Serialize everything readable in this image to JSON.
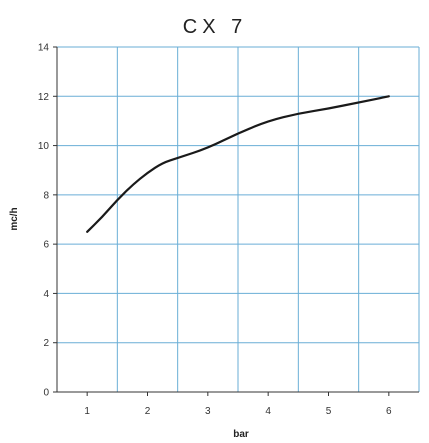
{
  "chart_data": {
    "type": "line",
    "title": "CX  7",
    "xlabel": "bar",
    "ylabel": "mc/h",
    "xlim": [
      0.5,
      6.5
    ],
    "ylim": [
      0,
      14
    ],
    "x_ticks": [
      1,
      2,
      3,
      4,
      5,
      6
    ],
    "y_ticks": [
      0,
      2,
      4,
      6,
      8,
      10,
      12,
      14
    ],
    "grid": true,
    "colors": {
      "grid": "#6aaed6",
      "line": "#1a1a1a",
      "axis": "#333333"
    },
    "series": [
      {
        "x": [
          1,
          1.25,
          1.5,
          1.75,
          2,
          2.25,
          2.5,
          3,
          3.5,
          4,
          4.5,
          5,
          5.5,
          6
        ],
        "values": [
          6.5,
          7.1,
          7.8,
          8.4,
          8.9,
          9.3,
          9.5,
          9.9,
          10.5,
          11.0,
          11.3,
          11.5,
          11.75,
          12.0
        ]
      }
    ]
  }
}
